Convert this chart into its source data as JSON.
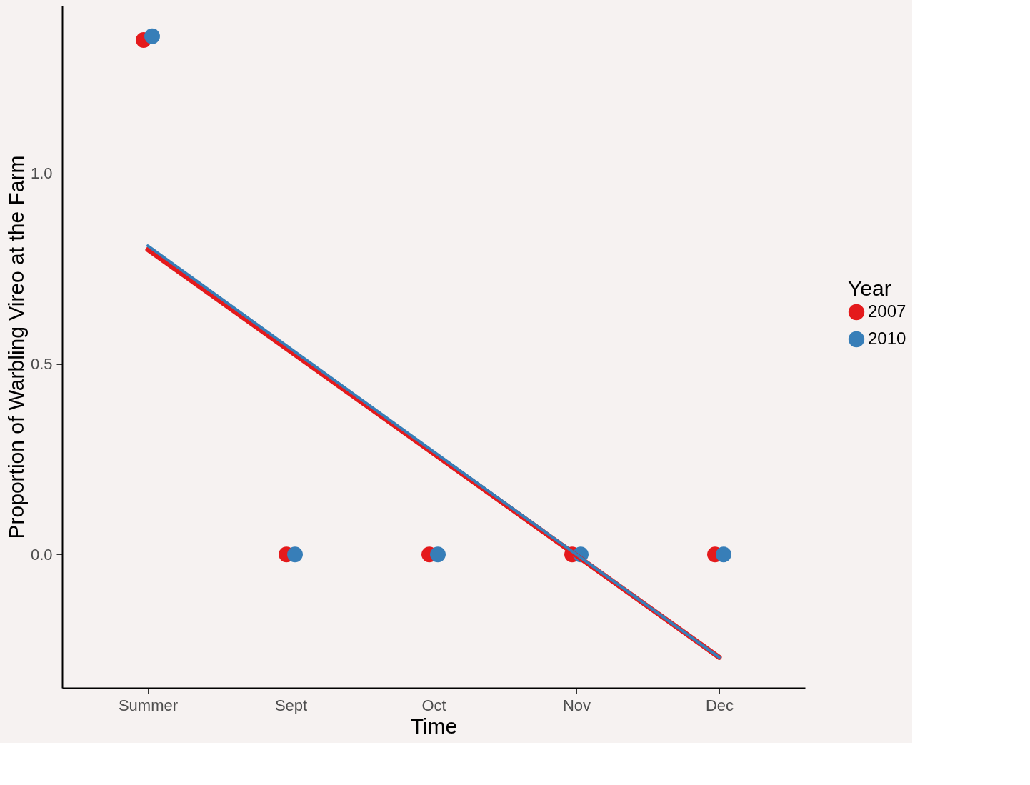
{
  "chart_data": {
    "type": "scatter",
    "xlabel": "Time",
    "ylabel": "Proportion of Warbling Vireo at the Farm",
    "legend_title": "Year",
    "categories": [
      "Summer",
      "Sept",
      "Oct",
      "Nov",
      "Dec"
    ],
    "series": [
      {
        "name": "2007",
        "color": "#e41a1c",
        "type": "scatter",
        "values": [
          1.35,
          0.0,
          0.0,
          0.0,
          0.0
        ]
      },
      {
        "name": "2010",
        "color": "#377eb8",
        "type": "scatter",
        "values": [
          1.36,
          0.0,
          0.0,
          0.0,
          0.0
        ]
      },
      {
        "color": "#e41a1c",
        "type": "line",
        "marker": "none",
        "x": [
          "Summer",
          "Dec"
        ],
        "values": [
          0.8,
          -0.27
        ]
      },
      {
        "color": "#377eb8",
        "type": "line",
        "marker": "none",
        "x": [
          "Summer",
          "Dec"
        ],
        "values": [
          0.81,
          -0.27
        ]
      }
    ],
    "ylim": [
      -0.35,
      1.44
    ],
    "yticks": [
      {
        "value": 0,
        "label": "0.0"
      },
      {
        "value": 0.5,
        "label": "0.5"
      },
      {
        "value": 1,
        "label": "1.0"
      }
    ],
    "grid": false,
    "legend": "right",
    "marker": "circle"
  }
}
